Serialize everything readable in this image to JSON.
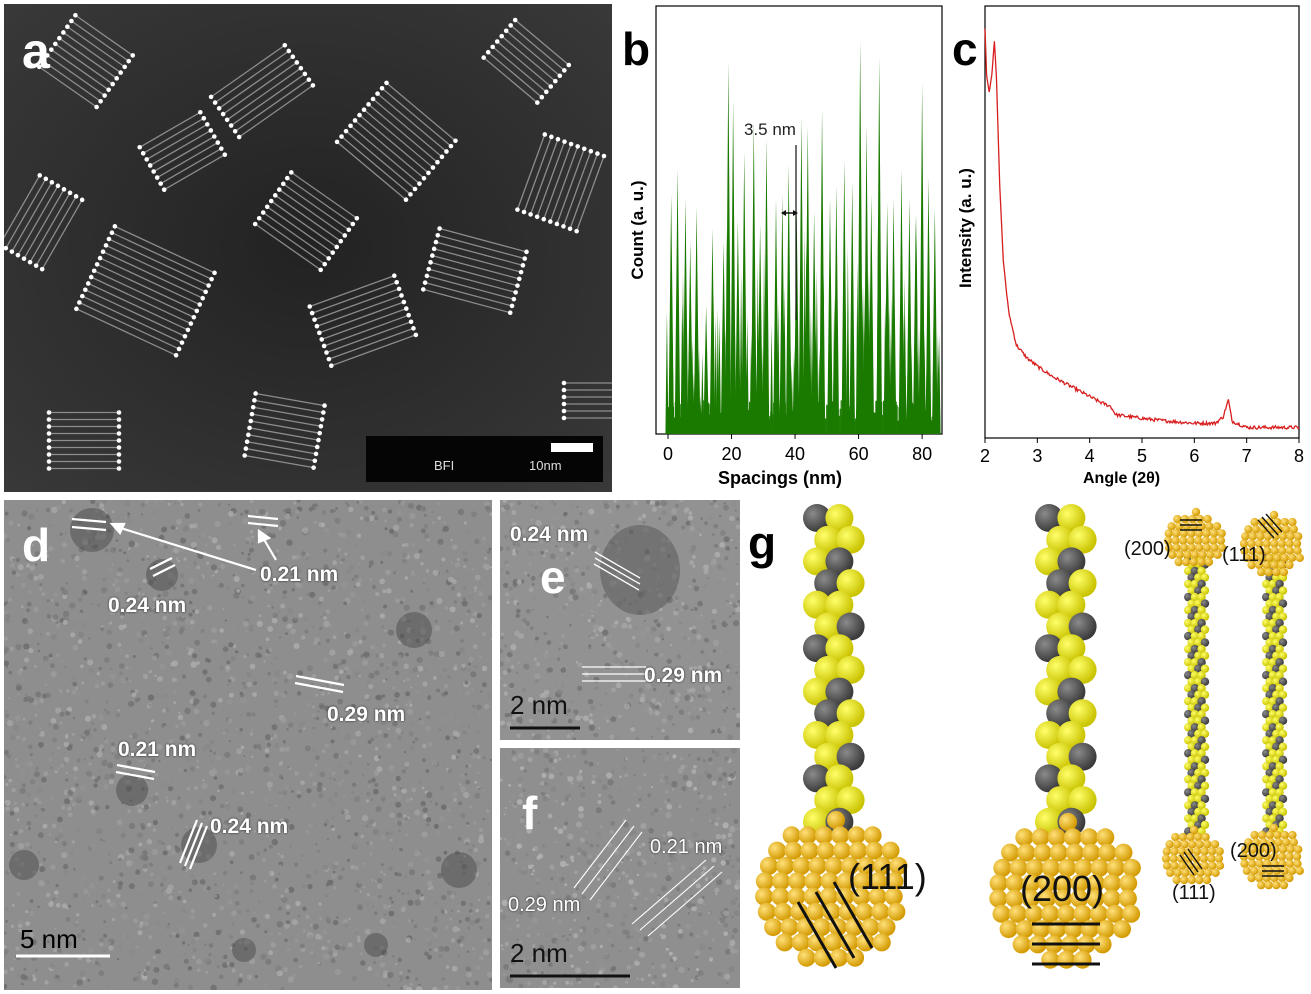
{
  "panels": {
    "a": {
      "letter": "a",
      "scalebar": {
        "mode": "BFI",
        "length": "10nm"
      }
    },
    "b": {
      "letter": "b",
      "annotation": "3.5 nm"
    },
    "c": {
      "letter": "c"
    },
    "d": {
      "letter": "d",
      "labels": [
        "0.21 nm",
        "0.24 nm",
        "0.29 nm",
        "0.21 nm",
        "0.24 nm"
      ],
      "scalebar": "5 nm"
    },
    "e": {
      "letter": "e",
      "labels": [
        "0.24 nm",
        "0.29 nm"
      ],
      "scalebar": "2 nm"
    },
    "f": {
      "letter": "f",
      "labels": [
        "0.21 nm",
        "0.29 nm"
      ],
      "scalebar": "2 nm"
    },
    "g": {
      "letter": "g",
      "facets_large": [
        "(111)",
        "(200)"
      ],
      "facets_small": [
        "(200)",
        "(111)",
        "(111)",
        "(200)"
      ]
    }
  },
  "chart_data": [
    {
      "type": "bar",
      "panel": "b",
      "xlabel": "Spacings (nm)",
      "ylabel": "Count (a. u.)",
      "xlim": [
        0,
        85
      ],
      "xticks": [
        0,
        20,
        40,
        60,
        80
      ],
      "color": "#1a7a00",
      "peaks": [
        {
          "x": 1,
          "h": 0.56
        },
        {
          "x": 3,
          "h": 0.62
        },
        {
          "x": 5.5,
          "h": 0.55
        },
        {
          "x": 7,
          "h": 0.45
        },
        {
          "x": 9,
          "h": 0.53
        },
        {
          "x": 12,
          "h": 0.3
        },
        {
          "x": 14,
          "h": 0.48
        },
        {
          "x": 17.5,
          "h": 0.45
        },
        {
          "x": 19,
          "h": 0.87
        },
        {
          "x": 20.5,
          "h": 0.78
        },
        {
          "x": 22,
          "h": 0.5
        },
        {
          "x": 24,
          "h": 0.66
        },
        {
          "x": 27,
          "h": 0.73
        },
        {
          "x": 29,
          "h": 0.49
        },
        {
          "x": 31,
          "h": 0.69
        },
        {
          "x": 34,
          "h": 0.55
        },
        {
          "x": 36,
          "h": 0.56
        },
        {
          "x": 38,
          "h": 0.63
        },
        {
          "x": 40.5,
          "h": 0.52
        },
        {
          "x": 42,
          "h": 0.74
        },
        {
          "x": 44,
          "h": 0.72
        },
        {
          "x": 46,
          "h": 0.52
        },
        {
          "x": 48.5,
          "h": 0.76
        },
        {
          "x": 51,
          "h": 0.55
        },
        {
          "x": 53,
          "h": 0.58
        },
        {
          "x": 55.5,
          "h": 0.64
        },
        {
          "x": 58,
          "h": 0.59
        },
        {
          "x": 60.5,
          "h": 0.92
        },
        {
          "x": 62.5,
          "h": 0.72
        },
        {
          "x": 64,
          "h": 0.56
        },
        {
          "x": 66.5,
          "h": 0.88
        },
        {
          "x": 69,
          "h": 0.54
        },
        {
          "x": 71,
          "h": 0.55
        },
        {
          "x": 73.5,
          "h": 0.62
        },
        {
          "x": 76,
          "h": 0.55
        },
        {
          "x": 78,
          "h": 0.51
        },
        {
          "x": 80,
          "h": 0.82
        },
        {
          "x": 82,
          "h": 0.6
        },
        {
          "x": 84,
          "h": 0.53
        }
      ]
    },
    {
      "type": "line",
      "panel": "c",
      "xlabel": "Angle (2θ)",
      "ylabel": "Intensity (a. u.)",
      "xlim": [
        2,
        8
      ],
      "xticks": [
        2,
        3,
        4,
        5,
        6,
        7,
        8
      ],
      "color": "#d81e1e",
      "points": [
        [
          2.0,
          0.97
        ],
        [
          2.03,
          0.86
        ],
        [
          2.08,
          0.82
        ],
        [
          2.13,
          0.86
        ],
        [
          2.18,
          0.94
        ],
        [
          2.22,
          0.85
        ],
        [
          2.28,
          0.6
        ],
        [
          2.35,
          0.42
        ],
        [
          2.45,
          0.3
        ],
        [
          2.6,
          0.22
        ],
        [
          2.8,
          0.19
        ],
        [
          3.0,
          0.17
        ],
        [
          3.3,
          0.145
        ],
        [
          3.6,
          0.125
        ],
        [
          3.9,
          0.105
        ],
        [
          4.2,
          0.085
        ],
        [
          4.4,
          0.075
        ],
        [
          4.5,
          0.055
        ],
        [
          4.8,
          0.05
        ],
        [
          5.1,
          0.045
        ],
        [
          5.5,
          0.04
        ],
        [
          6.0,
          0.035
        ],
        [
          6.4,
          0.035
        ],
        [
          6.55,
          0.05
        ],
        [
          6.65,
          0.09
        ],
        [
          6.72,
          0.04
        ],
        [
          7.0,
          0.025
        ],
        [
          7.5,
          0.025
        ],
        [
          8.0,
          0.025
        ]
      ]
    }
  ]
}
